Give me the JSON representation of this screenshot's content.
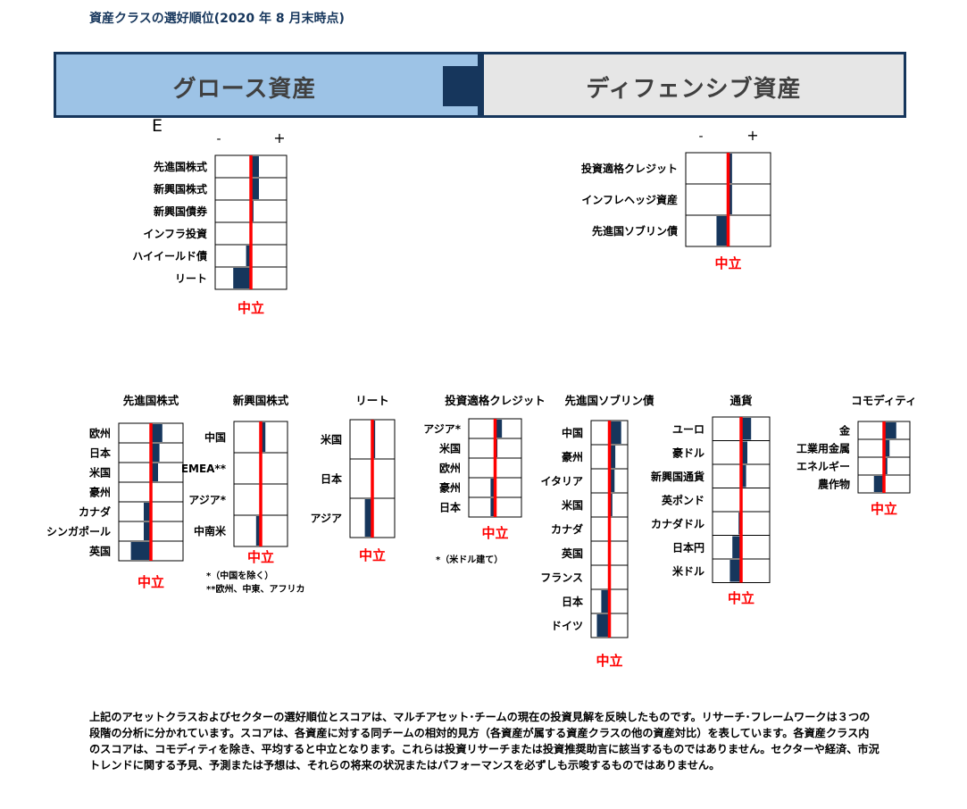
{
  "title": "資産クラスの選好順位(2020 年 8 月末時点)",
  "banners": {
    "growth": "グロース資産",
    "defensive": "ディフェンシブ資産"
  },
  "stray_char": "E",
  "colors": {
    "bar": "#16365c",
    "neutral_line": "#ff0000",
    "neutral_label": "#ff0000",
    "grid": "#000000",
    "banner_growth": "#9dc3e6",
    "banner_defensive": "#e6e6e6"
  },
  "footnotes": {
    "em_1": "*（中国を除く）",
    "em_2": "**欧州、中東、アフリカ",
    "ig_1": "*（米ドル建て）"
  },
  "body_text": "上記のアセットクラスおよびセクターの選好順位とスコアは、マルチアセット･チームの現在の投資見解を反映したものです。リサーチ･フレームワークは３つの段階の分析に分かれています。スコアは、各資産に対する同チームの相対的見方（各資産が属する資産クラスの他の資産対比）を表しています。各資産クラス内のスコアは、コモディティを除き、平均すると中立となります。これらは投資リサーチまたは投資推奨助言に該当するものではありません。セクターや経済、市況トレンドに関する予見、予測または予想は、それらの将来の状況またはパフォーマンスを必ずしも示唆するものではありません。",
  "chart_data": [
    {
      "type": "bar",
      "title": "",
      "neutral_label": "中立",
      "minus_label": "-",
      "plus_label": "+",
      "range": [
        -1,
        1
      ],
      "categories": [
        "先進国株式",
        "新興国株式",
        "新興国債券",
        "インフラ投資",
        "ハイイールド債",
        "リート"
      ],
      "values": [
        0.25,
        0.25,
        0.08,
        0.03,
        -0.15,
        -0.55
      ]
    },
    {
      "type": "bar",
      "title": "",
      "neutral_label": "中立",
      "minus_label": "-",
      "plus_label": "+",
      "range": [
        -1,
        1
      ],
      "categories": [
        "投資適格クレジット",
        "インフレヘッジ資産",
        "先進国ソブリン債"
      ],
      "values": [
        0.1,
        0.1,
        -0.3
      ]
    },
    {
      "type": "bar",
      "title": "先進国株式",
      "neutral_label": "中立",
      "range": [
        -1,
        1
      ],
      "categories": [
        "欧州",
        "日本",
        "米国",
        "豪州",
        "カナダ",
        "シンガポール",
        "英国"
      ],
      "values": [
        0.4,
        0.3,
        0.25,
        0.0,
        -0.25,
        -0.25,
        -0.7
      ]
    },
    {
      "type": "bar",
      "title": "新興国株式",
      "neutral_label": "中立",
      "range": [
        -1,
        1
      ],
      "categories": [
        "中国",
        "EMEA**",
        "アジア*",
        "中南米"
      ],
      "values": [
        0.2,
        0.0,
        0.0,
        -0.2
      ]
    },
    {
      "type": "bar",
      "title": "リート",
      "neutral_label": "中立",
      "range": [
        -1,
        1
      ],
      "categories": [
        "米国",
        "日本",
        "アジア"
      ],
      "values": [
        0.15,
        0.0,
        -0.4
      ]
    },
    {
      "type": "bar",
      "title": "投資適格クレジット",
      "neutral_label": "中立",
      "range": [
        -1,
        1
      ],
      "categories": [
        "アジア*",
        "米国",
        "欧州",
        "豪州",
        "日本"
      ],
      "values": [
        0.3,
        0.1,
        0.0,
        -0.2,
        -0.2
      ]
    },
    {
      "type": "bar",
      "title": "先進国ソブリン債",
      "neutral_label": "中立",
      "range": [
        -1,
        1
      ],
      "categories": [
        "中国",
        "豪州",
        "イタリア",
        "米国",
        "カナダ",
        "英国",
        "フランス",
        "日本",
        "ドイツ"
      ],
      "values": [
        0.8,
        0.4,
        0.35,
        0.2,
        0.0,
        0.0,
        0.0,
        -0.55,
        -0.85
      ]
    },
    {
      "type": "bar",
      "title": "通貨",
      "neutral_label": "中立",
      "range": [
        -1,
        1
      ],
      "categories": [
        "ユーロ",
        "豪ドル",
        "新興国通貨",
        "英ポンド",
        "カナダドル",
        "日本円",
        "米ドル"
      ],
      "values": [
        0.4,
        0.25,
        0.2,
        0.0,
        -0.1,
        -0.35,
        -0.45
      ]
    },
    {
      "type": "bar",
      "title": "コモディティ",
      "neutral_label": "中立",
      "range": [
        -1,
        1
      ],
      "categories": [
        "金",
        "工業用金属",
        "エネルギー",
        "農作物"
      ],
      "values": [
        0.55,
        0.25,
        0.15,
        -0.45
      ]
    }
  ]
}
